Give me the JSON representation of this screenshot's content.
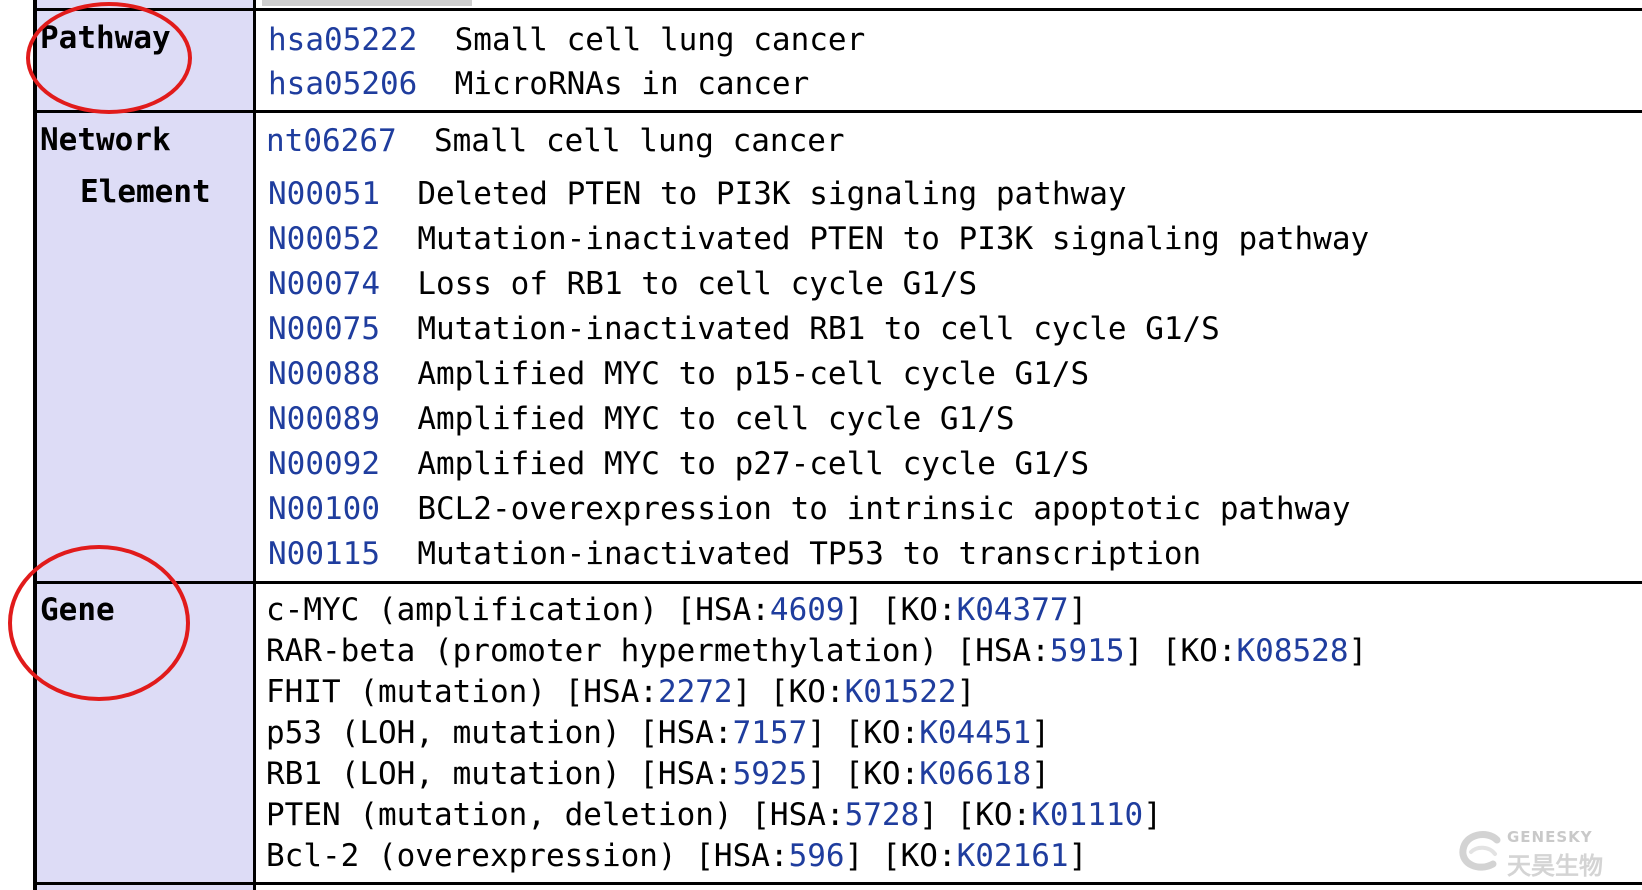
{
  "pathway": {
    "label": "Pathway",
    "entries": [
      {
        "id": "hsa05222",
        "name": "Small cell lung cancer"
      },
      {
        "id": "hsa05206",
        "name": "MicroRNAs in cancer"
      }
    ]
  },
  "network": {
    "label_line1": "Network",
    "label_line2": "Element",
    "nt": {
      "id": "nt06267",
      "name": "Small cell lung cancer"
    },
    "entries": [
      {
        "id": "N00051",
        "name": "Deleted PTEN to PI3K signaling pathway"
      },
      {
        "id": "N00052",
        "name": "Mutation-inactivated PTEN to PI3K signaling pathway"
      },
      {
        "id": "N00074",
        "name": "Loss of RB1 to cell cycle G1/S"
      },
      {
        "id": "N00075",
        "name": "Mutation-inactivated RB1 to cell cycle G1/S"
      },
      {
        "id": "N00088",
        "name": "Amplified MYC to p15-cell cycle G1/S"
      },
      {
        "id": "N00089",
        "name": "Amplified MYC to cell cycle G1/S"
      },
      {
        "id": "N00092",
        "name": "Amplified MYC to p27-cell cycle G1/S"
      },
      {
        "id": "N00100",
        "name": "BCL2-overexpression to intrinsic apoptotic pathway"
      },
      {
        "id": "N00115",
        "name": "Mutation-inactivated TP53 to transcription"
      }
    ]
  },
  "gene": {
    "label": "Gene",
    "entries": [
      {
        "desc": "c-MYC (amplification) [HSA:",
        "hsa": "4609",
        "mid": "] [KO:",
        "ko": "K04377",
        "end": "]"
      },
      {
        "desc": "RAR-beta (promoter hypermethylation) [HSA:",
        "hsa": "5915",
        "mid": "] [KO:",
        "ko": "K08528",
        "end": "]"
      },
      {
        "desc": "FHIT (mutation) [HSA:",
        "hsa": "2272",
        "mid": "] [KO:",
        "ko": "K01522",
        "end": "]"
      },
      {
        "desc": "p53 (LOH, mutation) [HSA:",
        "hsa": "7157",
        "mid": "] [KO:",
        "ko": "K04451",
        "end": "]"
      },
      {
        "desc": "RB1 (LOH, mutation) [HSA:",
        "hsa": "5925",
        "mid": "] [KO:",
        "ko": "K06618",
        "end": "]"
      },
      {
        "desc": "PTEN (mutation, deletion) [HSA:",
        "hsa": "5728",
        "mid": "] [KO:",
        "ko": "K01110",
        "end": "]"
      },
      {
        "desc": "Bcl-2 (overexpression) [HSA:",
        "hsa": "596",
        "mid": "] [KO:",
        "ko": "K02161",
        "end": "]"
      }
    ]
  },
  "watermark": {
    "brand_en": "GENESKY",
    "brand_cn": "天昊生物"
  },
  "colors": {
    "link": "#1f3d9e",
    "label_bg": "#dddcf6",
    "annotation_circle": "#e11b1b"
  }
}
